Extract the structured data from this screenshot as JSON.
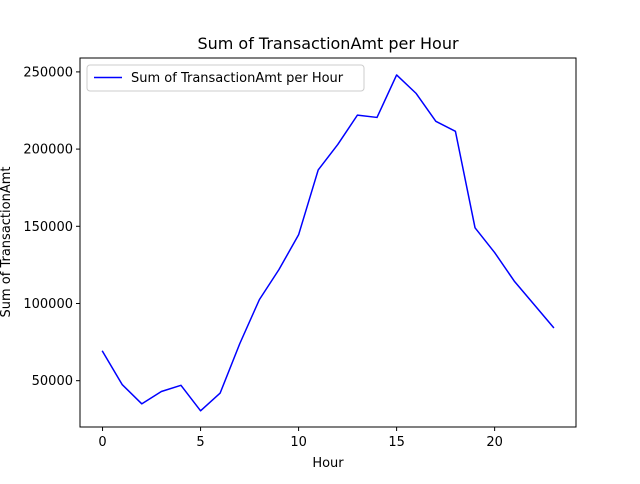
{
  "chart_data": {
    "type": "line",
    "title": "Sum of TransactionAmt per Hour",
    "xlabel": "Hour",
    "ylabel": "Sum of TransactionAmt",
    "xlim": [
      -1.15,
      24.15
    ],
    "ylim": [
      20000,
      259000
    ],
    "x_ticks": [
      0,
      5,
      10,
      15,
      20
    ],
    "y_ticks": [
      50000,
      100000,
      150000,
      200000,
      250000
    ],
    "grid": false,
    "legend_position": "upper left",
    "series": [
      {
        "name": "Sum of TransactionAmt per Hour",
        "color": "#0000ff",
        "x": [
          0,
          1,
          2,
          3,
          4,
          5,
          6,
          7,
          8,
          9,
          10,
          11,
          12,
          13,
          14,
          15,
          16,
          17,
          18,
          19,
          20,
          21,
          22,
          23
        ],
        "values": [
          69000,
          47500,
          35000,
          43000,
          47000,
          30500,
          42000,
          74000,
          102500,
          122000,
          144500,
          186500,
          203000,
          222000,
          220500,
          248000,
          236000,
          218000,
          211500,
          149000,
          133000,
          114500,
          99500,
          84500
        ]
      }
    ]
  }
}
